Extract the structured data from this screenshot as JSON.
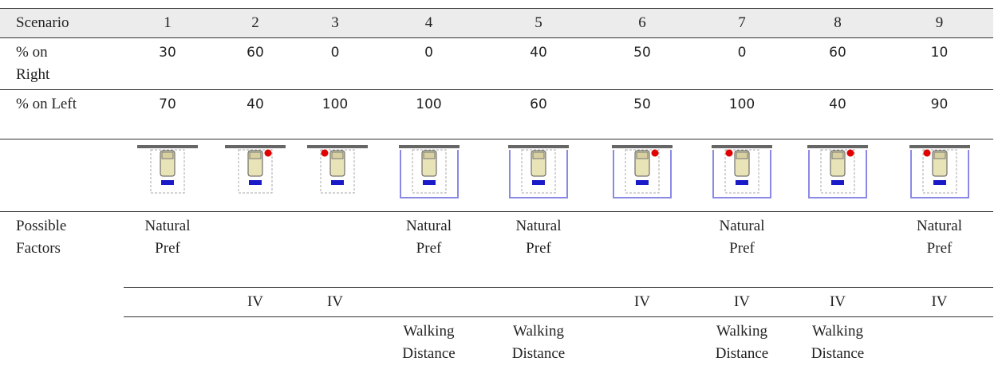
{
  "table": {
    "header": [
      "Scenario",
      1,
      2,
      3,
      4,
      5,
      6,
      7,
      8,
      9
    ],
    "rows": [
      {
        "label": "% on Right",
        "values": [
          30,
          60,
          0,
          0,
          40,
          50,
          0,
          60,
          10
        ]
      },
      {
        "label": "% on Left",
        "values": [
          70,
          40,
          100,
          100,
          60,
          50,
          100,
          40,
          90
        ]
      }
    ],
    "factors": {
      "label": "Possible Factors",
      "rows": [
        [
          "Natural Pref",
          null,
          null,
          "Natural Pref",
          "Natural Pref",
          null,
          "Natural Pref",
          null,
          "Natural Pref"
        ],
        [
          null,
          "IV",
          "IV",
          null,
          null,
          "IV",
          "IV",
          "IV",
          "IV"
        ],
        [
          null,
          null,
          null,
          "Walking Distance",
          "Walking Distance",
          null,
          "Walking Distance",
          "Walking Distance",
          null
        ]
      ]
    }
  }
}
